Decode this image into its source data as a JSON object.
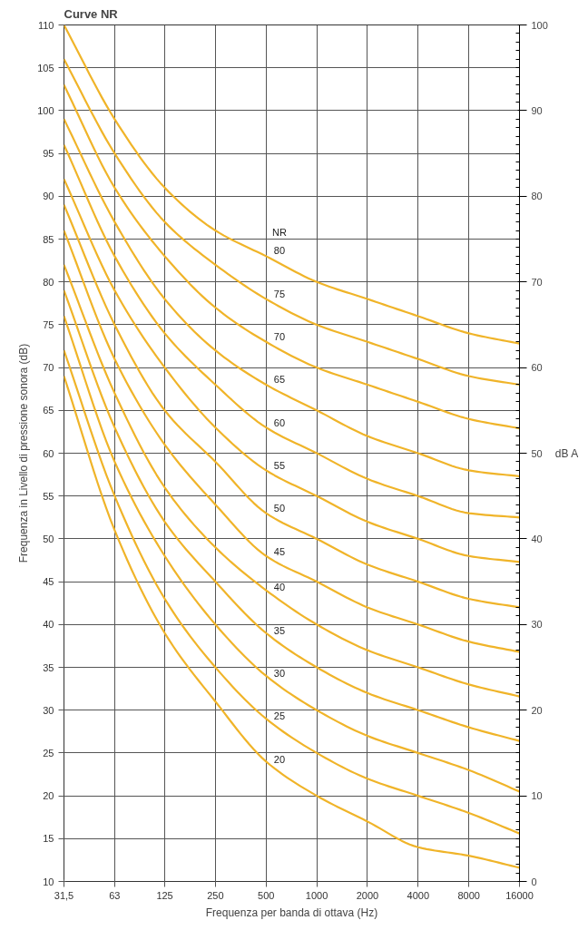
{
  "chart_data": {
    "type": "line",
    "title": "Curve NR",
    "xlabel": "Frequenza per banda di ottava (Hz)",
    "ylabel": "Frequenza in Livello di pressione sonora (dB)",
    "y2label": "dB A",
    "log": "x",
    "grid": true,
    "marker": "none",
    "line_style": "solid",
    "x": [
      31.5,
      63,
      125,
      250,
      500,
      1000,
      2000,
      4000,
      8000,
      16000
    ],
    "xlim": [
      31.5,
      16000
    ],
    "xticks": [
      {
        "value": 31.5,
        "label": "31,5"
      },
      63,
      125,
      250,
      500,
      1000,
      2000,
      4000,
      8000,
      16000
    ],
    "ylim": [
      10,
      110
    ],
    "yticks": [
      10,
      15,
      20,
      25,
      30,
      35,
      40,
      45,
      50,
      55,
      60,
      65,
      70,
      75,
      80,
      85,
      90,
      95,
      100,
      105,
      110
    ],
    "y2lim": [
      0,
      100
    ],
    "y2ticks": [
      0,
      10,
      20,
      30,
      40,
      50,
      60,
      70,
      80,
      90,
      100
    ],
    "series": [
      {
        "name": "80",
        "color": "#f0b429",
        "values": [
          110,
          99,
          91,
          86,
          83,
          80,
          78,
          76,
          74,
          72.8
        ]
      },
      {
        "name": "75",
        "color": "#f0b429",
        "values": [
          106,
          95,
          87,
          82,
          78,
          75,
          73,
          71,
          69,
          68
        ]
      },
      {
        "name": "70",
        "color": "#f0b429",
        "values": [
          103,
          91,
          83,
          77,
          73,
          70,
          68,
          66,
          64,
          62.9
        ]
      },
      {
        "name": "65",
        "color": "#f0b429",
        "values": [
          99,
          87,
          78,
          72,
          68,
          65,
          62,
          60,
          58,
          57.3
        ]
      },
      {
        "name": "60",
        "color": "#f0b429",
        "values": [
          96,
          83,
          74,
          68,
          63,
          60,
          57,
          55,
          53,
          52.5
        ]
      },
      {
        "name": "55",
        "color": "#f0b429",
        "values": [
          92,
          79,
          70,
          63,
          58,
          55,
          52,
          50,
          48,
          47.3
        ]
      },
      {
        "name": "50",
        "color": "#f0b429",
        "values": [
          89,
          75,
          65,
          59,
          53,
          50,
          47,
          45,
          43,
          42
        ]
      },
      {
        "name": "45",
        "color": "#f0b429",
        "values": [
          86,
          71,
          61,
          54,
          48,
          45,
          42,
          40,
          38,
          36.8
        ]
      },
      {
        "name": "40",
        "color": "#f0b429",
        "values": [
          82,
          67,
          56,
          49,
          44,
          40,
          37,
          35,
          33,
          31.6
        ]
      },
      {
        "name": "35",
        "color": "#f0b429",
        "values": [
          79,
          63,
          52,
          45,
          39,
          35,
          32,
          30,
          28,
          26.4
        ]
      },
      {
        "name": "30",
        "color": "#f0b429",
        "values": [
          76,
          59,
          48,
          40,
          34,
          30,
          27,
          25,
          23,
          20.5
        ]
      },
      {
        "name": "25",
        "color": "#f0b429",
        "values": [
          72,
          55,
          43,
          35,
          29,
          25,
          22,
          20,
          18,
          15.6
        ]
      },
      {
        "name": "20",
        "color": "#f0b429",
        "values": [
          69,
          51,
          39,
          31,
          24,
          20,
          17,
          14,
          13,
          11.6
        ]
      }
    ],
    "annotations": [
      "NR"
    ]
  }
}
